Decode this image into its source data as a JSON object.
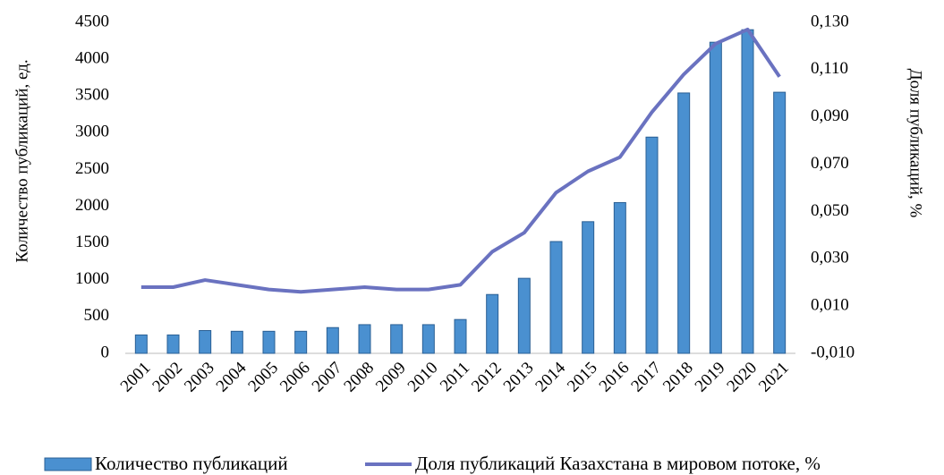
{
  "chart_data": {
    "type": "bar+line",
    "y_label": "Количество публикаций, ед.",
    "y2_label": "Доля публикаций, %",
    "categories": [
      "2001",
      "2002",
      "2003",
      "2004",
      "2005",
      "2006",
      "2007",
      "2008",
      "2009",
      "2010",
      "2011",
      "2012",
      "2013",
      "2014",
      "2015",
      "2016",
      "2017",
      "2018",
      "2019",
      "2020",
      "2021"
    ],
    "series": [
      {
        "name": "Количество публикаций",
        "type": "bar",
        "color": "#4a90d0",
        "values": [
          250,
          250,
          310,
          300,
          300,
          300,
          350,
          390,
          390,
          390,
          460,
          800,
          1020,
          1520,
          1790,
          2050,
          2940,
          3540,
          4230,
          4400,
          3550
        ]
      },
      {
        "name": "Доля публикаций  Казахстана в мировом потоке, %",
        "type": "line",
        "axis": "y2",
        "color": "#6a72c0",
        "values": [
          0.018,
          0.018,
          0.021,
          0.019,
          0.017,
          0.016,
          0.017,
          0.018,
          0.017,
          0.017,
          0.019,
          0.033,
          0.041,
          0.058,
          0.067,
          0.073,
          0.092,
          0.108,
          0.121,
          0.127,
          0.107
        ]
      }
    ],
    "ylim": [
      0,
      4500
    ],
    "yticks": [
      0,
      500,
      1000,
      1500,
      2000,
      2500,
      3000,
      3500,
      4000,
      4500
    ],
    "y2lim": [
      -0.01,
      0.13
    ],
    "y2ticks": [
      {
        "value": -0.01,
        "label": "-0,010"
      },
      {
        "value": 0.01,
        "label": "0,010"
      },
      {
        "value": 0.03,
        "label": "0,030"
      },
      {
        "value": 0.05,
        "label": "0,050"
      },
      {
        "value": 0.07,
        "label": "0,070"
      },
      {
        "value": 0.09,
        "label": "0,090"
      },
      {
        "value": 0.11,
        "label": "0,110"
      },
      {
        "value": 0.13,
        "label": "0,130"
      }
    ],
    "grid": false,
    "legend": "bottom"
  }
}
